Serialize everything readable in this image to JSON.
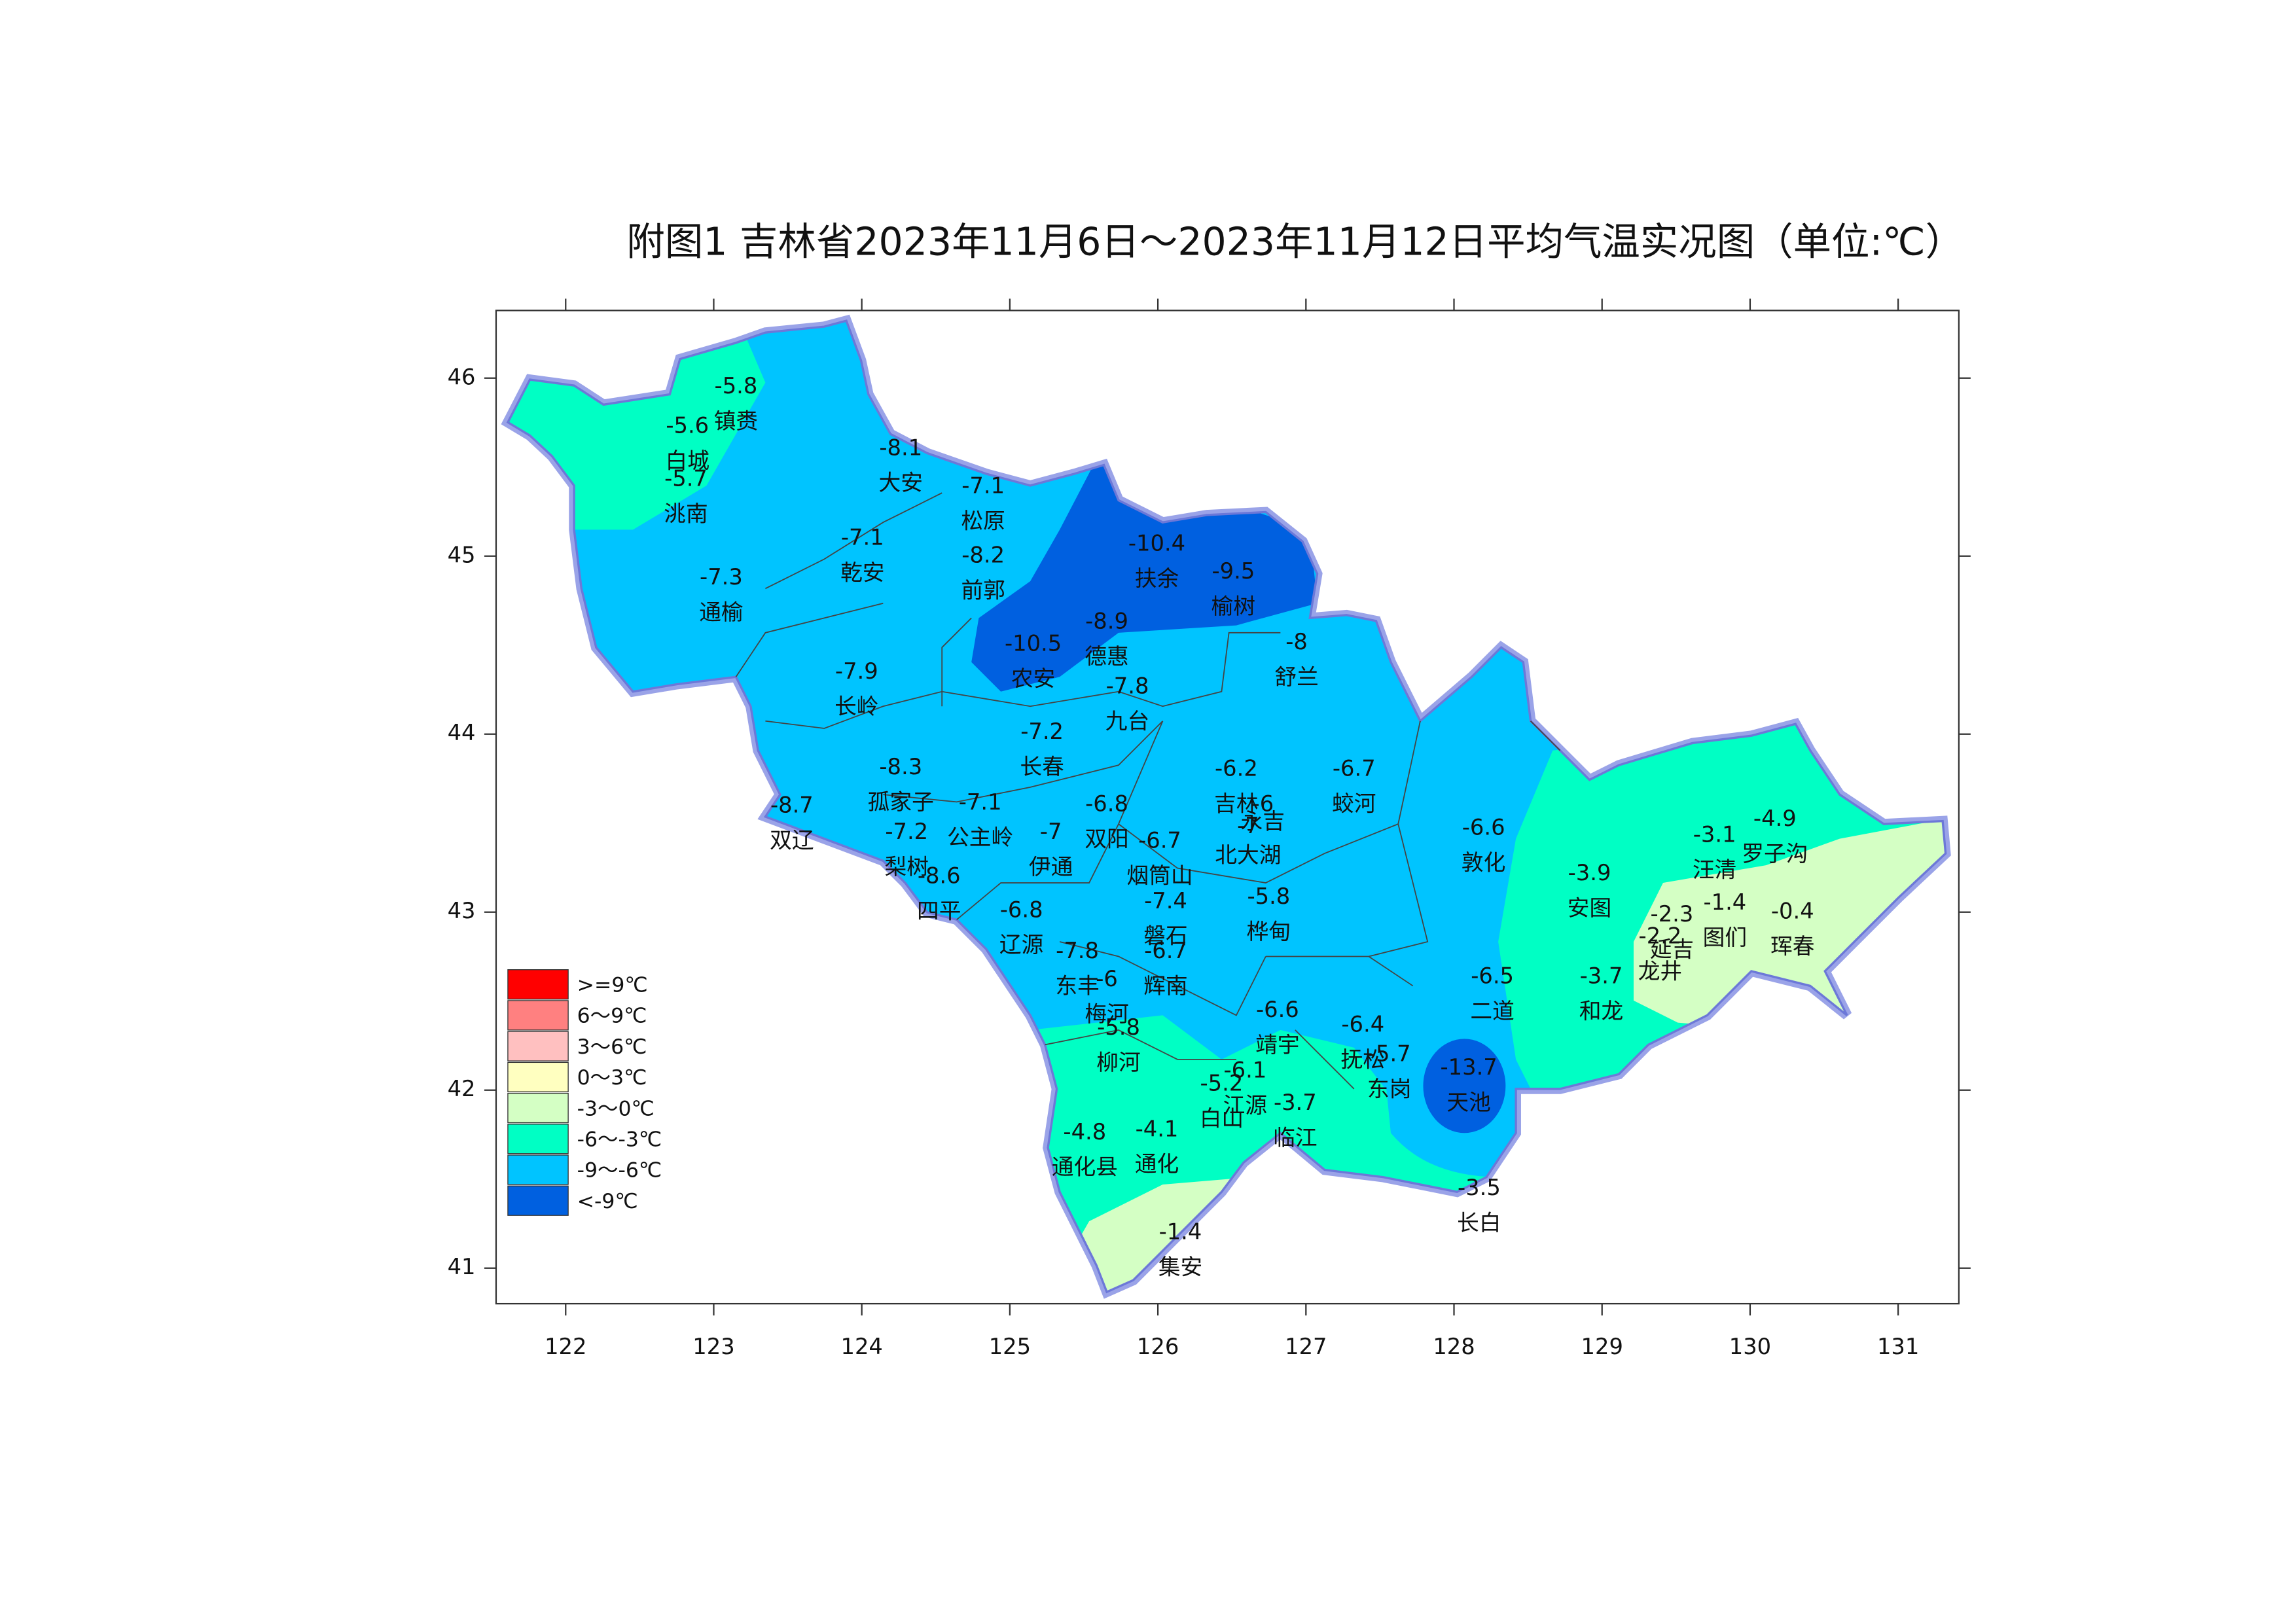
{
  "title": "附图1   吉林省2023年11月6日～2023年11月12日平均气温实况图（单位:℃）",
  "xlim": [
    121.53,
    131.41
  ],
  "ylim": [
    40.8,
    46.38
  ],
  "xticks": [
    122,
    123,
    124,
    125,
    126,
    127,
    128,
    129,
    130,
    131
  ],
  "yticks": [
    41,
    42,
    43,
    44,
    45,
    46
  ],
  "legend": [
    {
      "label": ">=9℃",
      "color": "#ff0000"
    },
    {
      "label": "6～9℃",
      "color": "#ff8080"
    },
    {
      "label": "3～6℃",
      "color": "#ffc0c0"
    },
    {
      "label": "0～3℃",
      "color": "#ffffc0"
    },
    {
      "label": "-3～0℃",
      "color": "#d4ffc4"
    },
    {
      "label": "-6～-3℃",
      "color": "#00ffc4"
    },
    {
      "label": "-9～-6℃",
      "color": "#00c4ff"
    },
    {
      "label": "<-9℃",
      "color": "#0060e0"
    }
  ],
  "stations": [
    {
      "name": "镇赉",
      "value": -5.8
    },
    {
      "name": "白城",
      "value": -5.6
    },
    {
      "name": "洮南",
      "value": -5.7
    },
    {
      "name": "大安",
      "value": -8.1
    },
    {
      "name": "松原",
      "value": -7.1
    },
    {
      "name": "乾安",
      "value": -7.1
    },
    {
      "name": "前郭",
      "value": -8.2
    },
    {
      "name": "扶余",
      "value": -10.4
    },
    {
      "name": "榆树",
      "value": -9.5
    },
    {
      "name": "通榆",
      "value": -7.3
    },
    {
      "name": "德惠",
      "value": -8.9
    },
    {
      "name": "农安",
      "value": -10.5
    },
    {
      "name": "舒兰",
      "value": -8
    },
    {
      "name": "长岭",
      "value": -7.9
    },
    {
      "name": "九台",
      "value": -7.8
    },
    {
      "name": "长春",
      "value": -7.2
    },
    {
      "name": "孤家子",
      "value": -8.3
    },
    {
      "name": "吉林",
      "value": -6.2
    },
    {
      "name": "蛟河",
      "value": -6.7
    },
    {
      "name": "双辽",
      "value": -8.7
    },
    {
      "name": "公主岭",
      "value": -7.1
    },
    {
      "name": "双阳",
      "value": -6.8
    },
    {
      "name": "永吉",
      "value": -6
    },
    {
      "name": "北大湖",
      "value": -7
    },
    {
      "name": "敦化",
      "value": -6.6
    },
    {
      "name": "梨树",
      "value": -7.2
    },
    {
      "name": "伊通",
      "value": -7
    },
    {
      "name": "烟筒山",
      "value": -6.7
    },
    {
      "name": "汪清",
      "value": -3.1
    },
    {
      "name": "罗子沟",
      "value": -4.9
    },
    {
      "name": "安图",
      "value": -3.9
    },
    {
      "name": "四平",
      "value": -8.6
    },
    {
      "name": "磐石",
      "value": -7.4
    },
    {
      "name": "桦甸",
      "value": -5.8
    },
    {
      "name": "辽源",
      "value": -6.8
    },
    {
      "name": "图们",
      "value": -1.4
    },
    {
      "name": "珲春",
      "value": -0.4
    },
    {
      "name": "延吉",
      "value": -2.3
    },
    {
      "name": "龙井",
      "value": -2.2
    },
    {
      "name": "辉南",
      "value": -6.7
    },
    {
      "name": "东丰",
      "value": -7.8
    },
    {
      "name": "梅河",
      "value": -6
    },
    {
      "name": "二道",
      "value": -6.5
    },
    {
      "name": "和龙",
      "value": -3.7
    },
    {
      "name": "靖宇",
      "value": -6.6
    },
    {
      "name": "柳河",
      "value": -5.8
    },
    {
      "name": "抚松",
      "value": -6.4
    },
    {
      "name": "东岗",
      "value": -5.7
    },
    {
      "name": "天池",
      "value": -13.7
    },
    {
      "name": "江源",
      "value": -6.1
    },
    {
      "name": "白山",
      "value": -5.2
    },
    {
      "name": "临江",
      "value": -3.7
    },
    {
      "name": "通化县",
      "value": -4.8
    },
    {
      "name": "通化",
      "value": -4.1
    },
    {
      "name": "长白",
      "value": -3.5
    },
    {
      "name": "集安",
      "value": -1.4
    }
  ]
}
